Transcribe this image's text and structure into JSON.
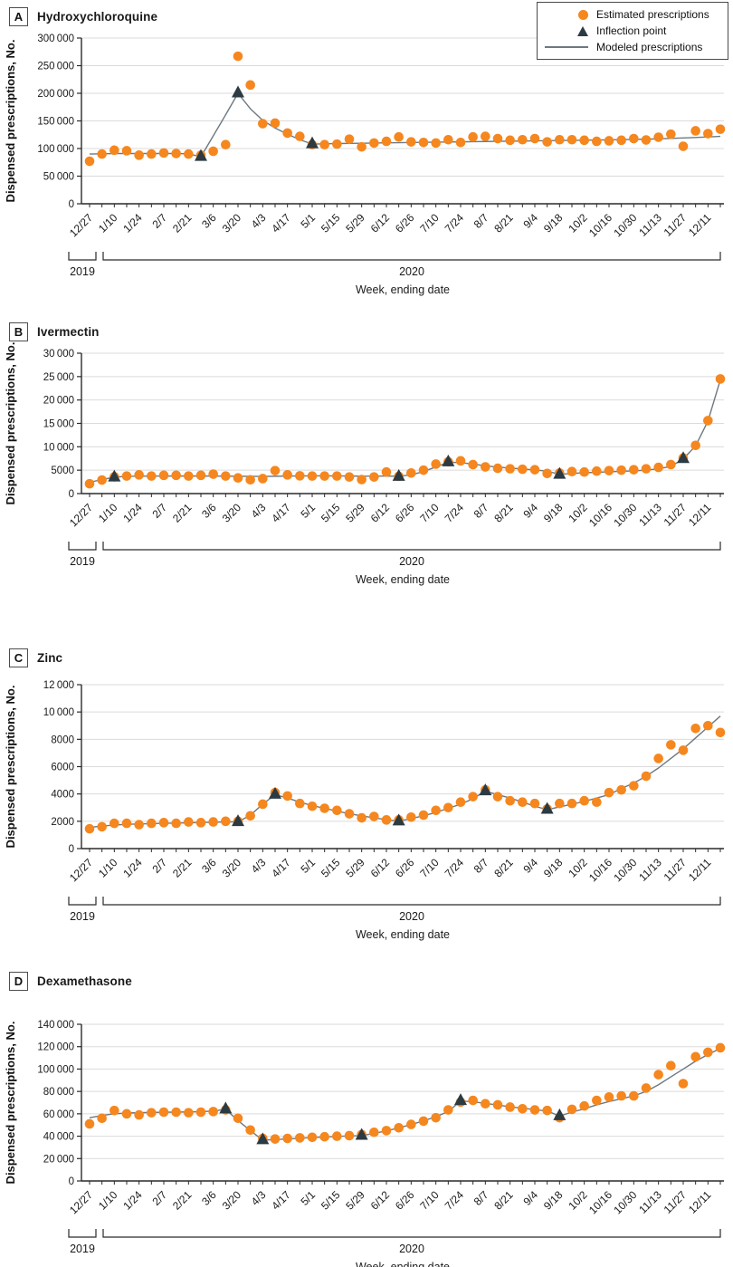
{
  "figure": {
    "y_axis_title": "Dispensed prescriptions, No.",
    "x_axis": {
      "title": "Week, ending date",
      "tick_labels": [
        "12/27",
        "1/10",
        "1/24",
        "2/7",
        "2/21",
        "3/6",
        "3/20",
        "4/3",
        "4/17",
        "5/1",
        "5/15",
        "5/29",
        "6/12",
        "6/26",
        "7/10",
        "7/24",
        "8/7",
        "8/21",
        "9/4",
        "9/18",
        "10/2",
        "10/16",
        "10/30",
        "11/13",
        "11/27",
        "12/11"
      ],
      "label_every_n_weeks": 2,
      "era_brackets": [
        {
          "label": "2019"
        },
        {
          "label": "2020"
        }
      ]
    },
    "legend": {
      "items": [
        {
          "marker": "circle-icon",
          "label": "Estimated prescriptions"
        },
        {
          "marker": "triangle-icon",
          "label": "Inflection point"
        },
        {
          "marker": "line-icon",
          "label": "Modeled prescriptions"
        }
      ]
    },
    "colors": {
      "estimated": "#F5871E",
      "inflection": "#2C3A42",
      "modeled": "#6E7880",
      "grid": "#DBDBDB",
      "axis": "#2A2A2A",
      "text": "#1A1A1A"
    }
  },
  "chart_data": [
    {
      "type": "scatter",
      "panel": "A",
      "title": "Hydroxychloroquine",
      "ylabel": "Dispensed prescriptions, No.",
      "xlabel": "Week, ending date",
      "ylim": [
        0,
        300000
      ],
      "grid": true,
      "legend_position": "top-right",
      "n_weeks": 52,
      "ytick_values": [
        0,
        50000,
        100000,
        150000,
        200000,
        250000,
        300000
      ],
      "yticks": [
        "0",
        "50 000",
        "100 000",
        "150 000",
        "200 000",
        "250 000",
        "300 000"
      ],
      "estimated": [
        77000,
        90000,
        97000,
        96000,
        88000,
        90000,
        92000,
        91000,
        90000,
        88000,
        95000,
        107000,
        267000,
        215000,
        145000,
        146000,
        128000,
        122000,
        107000,
        107000,
        108000,
        117000,
        103000,
        110000,
        113000,
        121000,
        112000,
        111000,
        110000,
        116000,
        111000,
        121000,
        122000,
        118000,
        115000,
        116000,
        118000,
        112000,
        116000,
        116000,
        115000,
        113000,
        114000,
        115000,
        118000,
        115500,
        120500,
        126000,
        104000,
        132000,
        127000,
        135000
      ],
      "modeled": [
        90000,
        90500,
        91000,
        91000,
        91000,
        91000,
        91000,
        91000,
        90500,
        85000,
        123000,
        161000,
        200000,
        172000,
        151000,
        137000,
        126000,
        116000,
        108000,
        108500,
        109000,
        109300,
        109600,
        110000,
        110300,
        110600,
        110900,
        111200,
        111500,
        111800,
        112100,
        112400,
        112700,
        113000,
        113300,
        113600,
        113900,
        114200,
        114500,
        114800,
        115100,
        115400,
        115700,
        116100,
        116500,
        117000,
        117600,
        118300,
        119100,
        120000,
        121000,
        122000
      ],
      "inflection": [
        {
          "i": 9,
          "v": 85000
        },
        {
          "i": 12,
          "v": 200000
        },
        {
          "i": 18,
          "v": 108000
        }
      ]
    },
    {
      "type": "scatter",
      "panel": "B",
      "title": "Ivermectin",
      "ylabel": "Dispensed prescriptions, No.",
      "xlabel": "Week, ending date",
      "ylim": [
        0,
        30000
      ],
      "grid": true,
      "n_weeks": 52,
      "ytick_values": [
        0,
        5000,
        10000,
        15000,
        20000,
        25000,
        30000
      ],
      "yticks": [
        "0",
        "5000",
        "10 000",
        "15 000",
        "20 000",
        "25 000",
        "30 000"
      ],
      "estimated": [
        2100,
        2900,
        3600,
        3750,
        4000,
        3750,
        3900,
        3900,
        3750,
        3900,
        4150,
        3750,
        3350,
        2950,
        3200,
        4900,
        4000,
        3800,
        3750,
        3750,
        3750,
        3550,
        3000,
        3550,
        4600,
        3700,
        4400,
        5000,
        6300,
        6800,
        7000,
        6200,
        5700,
        5400,
        5300,
        5200,
        5100,
        4300,
        4400,
        4700,
        4600,
        4800,
        4900,
        5000,
        5100,
        5300,
        5600,
        6200,
        7600,
        10300,
        15600,
        24500
      ],
      "modeled": [
        2400,
        3000,
        3500,
        3680,
        3720,
        3730,
        3740,
        3750,
        3750,
        3750,
        3740,
        3720,
        3700,
        3680,
        3670,
        3700,
        3740,
        3760,
        3780,
        3780,
        3770,
        3750,
        3720,
        3730,
        3740,
        3700,
        4000,
        4700,
        5700,
        6700,
        6620,
        6300,
        5950,
        5650,
        5450,
        5250,
        5050,
        4800,
        4100,
        4300,
        4450,
        4550,
        4650,
        4750,
        4850,
        5000,
        5300,
        5800,
        7400,
        10200,
        15500,
        24300
      ],
      "inflection": [
        {
          "i": 2,
          "v": 3450
        },
        {
          "i": 25,
          "v": 3600
        },
        {
          "i": 29,
          "v": 6700
        },
        {
          "i": 38,
          "v": 4050
        },
        {
          "i": 48,
          "v": 7400
        }
      ]
    },
    {
      "type": "scatter",
      "panel": "C",
      "title": "Zinc",
      "ylabel": "Dispensed prescriptions, No.",
      "xlabel": "Week, ending date",
      "ylim": [
        0,
        12000
      ],
      "grid": true,
      "n_weeks": 52,
      "ytick_values": [
        0,
        2000,
        4000,
        6000,
        8000,
        10000,
        12000
      ],
      "yticks": [
        "0",
        "2000",
        "4000",
        "6000",
        "8000",
        "10 000",
        "12 000"
      ],
      "estimated": [
        1450,
        1600,
        1850,
        1850,
        1750,
        1850,
        1900,
        1850,
        1950,
        1900,
        1950,
        2000,
        2000,
        2400,
        3250,
        4100,
        3850,
        3300,
        3100,
        2950,
        2800,
        2550,
        2250,
        2350,
        2100,
        2100,
        2300,
        2450,
        2800,
        3000,
        3400,
        3800,
        4300,
        3800,
        3500,
        3400,
        3300,
        2900,
        3300,
        3300,
        3500,
        3400,
        4100,
        4300,
        4600,
        5300,
        6600,
        7600,
        7200,
        8800,
        9000,
        8500
      ],
      "modeled": [
        1550,
        1650,
        1720,
        1780,
        1800,
        1830,
        1850,
        1870,
        1890,
        1910,
        1930,
        1950,
        1950,
        2450,
        3250,
        3950,
        3700,
        3400,
        3150,
        2950,
        2750,
        2550,
        2400,
        2250,
        2120,
        2000,
        2200,
        2400,
        2650,
        2950,
        3250,
        3650,
        4200,
        3950,
        3700,
        3400,
        3100,
        2850,
        3050,
        3250,
        3450,
        3700,
        3950,
        4400,
        4800,
        5300,
        5900,
        6600,
        7300,
        8100,
        8900,
        9700
      ],
      "inflection": [
        {
          "i": 12,
          "v": 1950
        },
        {
          "i": 15,
          "v": 3950
        },
        {
          "i": 25,
          "v": 2000
        },
        {
          "i": 32,
          "v": 4200
        },
        {
          "i": 37,
          "v": 2850
        }
      ]
    },
    {
      "type": "scatter",
      "panel": "D",
      "title": "Dexamethasone",
      "ylabel": "Dispensed prescriptions, No.",
      "xlabel": "Week, ending date",
      "ylim": [
        0,
        140000
      ],
      "grid": true,
      "n_weeks": 52,
      "ytick_values": [
        0,
        20000,
        40000,
        60000,
        80000,
        100000,
        120000,
        140000
      ],
      "yticks": [
        "0",
        "20 000",
        "40 000",
        "60 000",
        "80 000",
        "100 000",
        "120 000",
        "140 000"
      ],
      "estimated": [
        51000,
        56000,
        63000,
        60000,
        59000,
        61000,
        61500,
        61500,
        61000,
        61500,
        62000,
        63500,
        56000,
        45500,
        38000,
        37500,
        38000,
        38500,
        39000,
        39500,
        40000,
        40500,
        41500,
        43500,
        45000,
        47500,
        50500,
        53500,
        56500,
        63500,
        70500,
        72000,
        69000,
        68000,
        66000,
        64500,
        63500,
        63000,
        56500,
        64000,
        67000,
        72000,
        75000,
        76000,
        76000,
        83000,
        95000,
        103000,
        87000,
        111000,
        115000,
        119000
      ],
      "modeled": [
        56500,
        58500,
        60000,
        60700,
        61000,
        61200,
        61400,
        61500,
        61700,
        61900,
        62500,
        64000,
        54000,
        45000,
        36500,
        37000,
        37600,
        38200,
        38800,
        39300,
        39800,
        40200,
        40500,
        42500,
        44800,
        47400,
        50400,
        53700,
        57400,
        62000,
        71500,
        70800,
        69300,
        67800,
        66300,
        65000,
        63800,
        62500,
        58000,
        61500,
        64500,
        68000,
        71000,
        73500,
        76000,
        80000,
        86000,
        93000,
        100000,
        107000,
        113000,
        118500
      ],
      "inflection": [
        {
          "i": 11,
          "v": 64000
        },
        {
          "i": 14,
          "v": 36500
        },
        {
          "i": 22,
          "v": 40500
        },
        {
          "i": 30,
          "v": 71500
        },
        {
          "i": 38,
          "v": 58000
        }
      ]
    }
  ]
}
